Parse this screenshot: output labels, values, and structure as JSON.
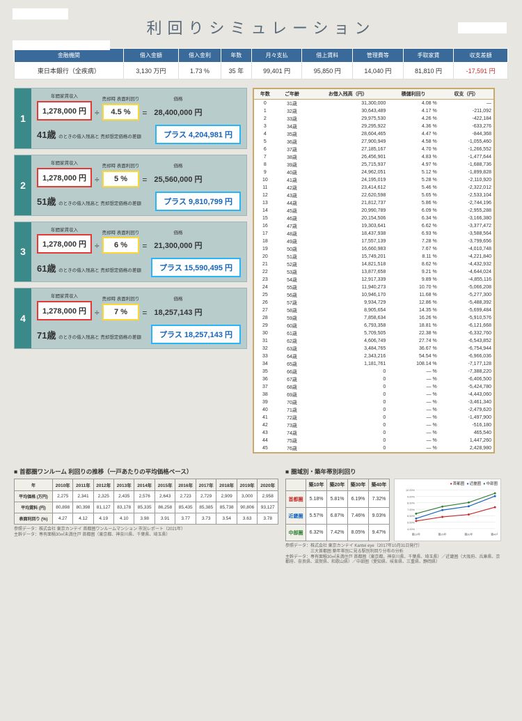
{
  "title": "利回りシミュレーション",
  "summary": {
    "headers": [
      "金融機関",
      "借入金額",
      "借入金利",
      "年数",
      "月々支払",
      "借上賃料",
      "管理費等",
      "手取家賃",
      "収支差額"
    ],
    "row": {
      "bank": "東日本銀行（全疾病）",
      "loan": "3,130 万円",
      "rate": "1.73 %",
      "years": "35 年",
      "monthly": "99,401 円",
      "rent": "95,850 円",
      "mgmt": "14,040 円",
      "net": "81,810 円",
      "diff": "-17,591 円"
    }
  },
  "scenarios": [
    {
      "num": "1",
      "income": "1,278,000 円",
      "income_label": "年間家賃収入",
      "yield": "4.5 %",
      "yield_label": "売却時\n表面利回り",
      "price": "28,400,000 円",
      "price_label": "価格",
      "age": "41歳",
      "age_note": "のときの借入残高と\n売却想定価格の差額",
      "plus": "プラス 4,204,981 円"
    },
    {
      "num": "2",
      "income": "1,278,000 円",
      "income_label": "年間家賃収入",
      "yield": "5 %",
      "yield_label": "売却時\n表面利回り",
      "price": "25,560,000 円",
      "price_label": "価格",
      "age": "51歳",
      "age_note": "のときの借入残高と\n売却想定価格の差額",
      "plus": "プラス 9,810,799 円"
    },
    {
      "num": "3",
      "income": "1,278,000 円",
      "income_label": "年間家賃収入",
      "yield": "6 %",
      "yield_label": "売却時\n表面利回り",
      "price": "21,300,000 円",
      "price_label": "価格",
      "age": "61歳",
      "age_note": "のときの借入残高と\n売却想定価格の差額",
      "plus": "プラス 15,590,495 円"
    },
    {
      "num": "4",
      "income": "1,278,000 円",
      "income_label": "年間家賃収入",
      "yield": "7 %",
      "yield_label": "売却時\n表面利回り",
      "price": "18,257,143 円",
      "price_label": "価格",
      "age": "71歳",
      "age_note": "のときの借入残高と\n売却想定価格の差額",
      "plus": "プラス 18,257,143 円"
    }
  ],
  "amort": {
    "headers": [
      "年数",
      "ご年齢",
      "お借入残高（円）",
      "積儲利回り",
      "収支（円）"
    ],
    "rows": [
      [
        0,
        "31歳",
        "31,300,000",
        "4.08 %",
        "—"
      ],
      [
        1,
        "32歳",
        "30,643,489",
        "4.17 %",
        "-211,092"
      ],
      [
        2,
        "33歳",
        "29,975,530",
        "4.26 %",
        "-422,184"
      ],
      [
        3,
        "34歳",
        "29,295,922",
        "4.36 %",
        "-633,276"
      ],
      [
        4,
        "35歳",
        "28,604,465",
        "4.47 %",
        "-844,368"
      ],
      [
        5,
        "36歳",
        "27,900,949",
        "4.58 %",
        "-1,055,460"
      ],
      [
        6,
        "37歳",
        "27,185,167",
        "4.70 %",
        "-1,266,552"
      ],
      [
        7,
        "38歳",
        "26,456,901",
        "4.83 %",
        "-1,477,644"
      ],
      [
        8,
        "39歳",
        "25,715,937",
        "4.97 %",
        "-1,688,736"
      ],
      [
        9,
        "40歳",
        "24,962,051",
        "5.12 %",
        "-1,899,828"
      ],
      [
        10,
        "41歳",
        "24,195,019",
        "5.28 %",
        "-2,110,920"
      ],
      [
        11,
        "42歳",
        "23,414,612",
        "5.46 %",
        "-2,322,012"
      ],
      [
        12,
        "43歳",
        "22,620,598",
        "5.65 %",
        "-2,533,104"
      ],
      [
        13,
        "44歳",
        "21,812,737",
        "5.86 %",
        "-2,744,196"
      ],
      [
        14,
        "45歳",
        "20,990,789",
        "6.09 %",
        "-2,955,288"
      ],
      [
        15,
        "46歳",
        "20,154,506",
        "6.34 %",
        "-3,166,380"
      ],
      [
        16,
        "47歳",
        "19,303,641",
        "6.62 %",
        "-3,377,472"
      ],
      [
        17,
        "48歳",
        "18,437,938",
        "6.93 %",
        "-3,588,564"
      ],
      [
        18,
        "49歳",
        "17,557,139",
        "7.28 %",
        "-3,799,656"
      ],
      [
        19,
        "50歳",
        "16,660,983",
        "7.67 %",
        "-4,010,748"
      ],
      [
        20,
        "51歳",
        "15,749,201",
        "8.11 %",
        "-4,221,840"
      ],
      [
        21,
        "52歳",
        "14,821,518",
        "8.62 %",
        "-4,432,932"
      ],
      [
        22,
        "53歳",
        "13,877,658",
        "9.21 %",
        "-4,644,024"
      ],
      [
        23,
        "54歳",
        "12,917,339",
        "9.89 %",
        "-4,855,116"
      ],
      [
        24,
        "55歳",
        "11,940,273",
        "10.70 %",
        "-5,066,208"
      ],
      [
        25,
        "56歳",
        "10,946,170",
        "11.68 %",
        "-5,277,300"
      ],
      [
        26,
        "57歳",
        "9,934,729",
        "12.86 %",
        "-5,488,392"
      ],
      [
        27,
        "58歳",
        "8,905,654",
        "14.35 %",
        "-5,699,484"
      ],
      [
        28,
        "59歳",
        "7,858,634",
        "16.26 %",
        "-5,910,576"
      ],
      [
        29,
        "60歳",
        "6,793,358",
        "18.81 %",
        "-6,121,668"
      ],
      [
        30,
        "61歳",
        "5,709,505",
        "22.38 %",
        "-6,332,760"
      ],
      [
        31,
        "62歳",
        "4,606,749",
        "27.74 %",
        "-6,543,852"
      ],
      [
        32,
        "63歳",
        "3,484,765",
        "36.67 %",
        "-6,754,944"
      ],
      [
        33,
        "64歳",
        "2,343,216",
        "54.54 %",
        "-6,966,036"
      ],
      [
        34,
        "65歳",
        "1,181,761",
        "108.14 %",
        "-7,177,128"
      ],
      [
        35,
        "66歳",
        "0",
        "— %",
        "-7,388,220"
      ],
      [
        36,
        "67歳",
        "0",
        "— %",
        "-6,406,500"
      ],
      [
        37,
        "68歳",
        "0",
        "— %",
        "-5,424,780"
      ],
      [
        38,
        "69歳",
        "0",
        "— %",
        "-4,443,060"
      ],
      [
        39,
        "70歳",
        "0",
        "— %",
        "-3,461,340"
      ],
      [
        40,
        "71歳",
        "0",
        "— %",
        "-2,479,620"
      ],
      [
        41,
        "72歳",
        "0",
        "— %",
        "-1,497,900"
      ],
      [
        42,
        "73歳",
        "0",
        "— %",
        "-516,180"
      ],
      [
        43,
        "74歳",
        "0",
        "— %",
        "465,540"
      ],
      [
        44,
        "75歳",
        "0",
        "— %",
        "1,447,260"
      ],
      [
        45,
        "76歳",
        "0",
        "— %",
        "2,428,980"
      ]
    ]
  },
  "trend": {
    "title": "首都圏ワンルーム 利回りの推移（一戸あたりの平均価格ベース）",
    "years": [
      "2010年",
      "2011年",
      "2012年",
      "2013年",
      "2014年",
      "2015年",
      "2016年",
      "2017年",
      "2018年",
      "2019年",
      "2020年"
    ],
    "rows": [
      {
        "label": "平均価格\n(万円)",
        "vals": [
          "2,275",
          "2,341",
          "2,325",
          "2,435",
          "2,576",
          "2,643",
          "2,723",
          "2,729",
          "2,909",
          "3,000",
          "2,958"
        ]
      },
      {
        "label": "平均賃料\n(円)",
        "vals": [
          "80,898",
          "80,398",
          "81,127",
          "83,178",
          "85,335",
          "86,258",
          "85,435",
          "85,385",
          "85,738",
          "90,806",
          "93,127"
        ]
      },
      {
        "label": "表面利回り\n(%)",
        "vals": [
          "4.27",
          "4.12",
          "4.19",
          "4.10",
          "3.98",
          "3.91",
          "3.77",
          "3.73",
          "3.54",
          "3.63",
          "3.78"
        ]
      }
    ],
    "foot1": "参照データ：株式会社 東京カンテイ 首都圏ワンルームマンション 市況レポート（2021年）",
    "foot2": "主幹データ：専有面積30㎡未満住戸 首都圏（東京都、神奈川県、千葉県、埼玉県）"
  },
  "region": {
    "title": "圏域別・築年帯別利回り",
    "cols": [
      "",
      "築10年",
      "築20年",
      "築30年",
      "築40年"
    ],
    "rows": [
      {
        "label": "首都圏",
        "cls": "rh-red",
        "vals": [
          "5.18%",
          "5.81%",
          "6.19%",
          "7.32%"
        ]
      },
      {
        "label": "近畿圏",
        "cls": "rh-blue",
        "vals": [
          "5.57%",
          "6.87%",
          "7.46%",
          "9.03%"
        ]
      },
      {
        "label": "中部圏",
        "cls": "rh-green",
        "vals": [
          "6.32%",
          "7.42%",
          "8.05%",
          "9.47%"
        ]
      }
    ],
    "legend": [
      "首都圏",
      "近畿圏",
      "中部圏"
    ],
    "foot1": "参照データ：株式会社 東京カンテイ Kantei eye（2017年10月31日発行）",
    "foot2": "　　　　　　三大首都圏 築年帯別に見る駅別利回り分布の分析",
    "foot3": "主幹データ：専有面積30㎡未満住戸 首都圏（東京都、神奈川県、千葉県、埼玉県）／近畿圏（大阪府、兵庫県、京都府、奈良県、滋賀県、和歌山県）／中部圏（愛知県、岐阜県、三重県、静岡県）",
    "chart": {
      "ylabels": [
        "10.00%",
        "9.00%",
        "8.00%",
        "7.00%",
        "6.00%",
        "5.00%",
        "4.00%"
      ],
      "xlabels": [
        "築10年",
        "築20年",
        "築30年",
        "築40年"
      ],
      "series": [
        {
          "color": "#c62828",
          "pts": [
            5.18,
            5.81,
            6.19,
            7.32
          ]
        },
        {
          "color": "#1565c0",
          "pts": [
            5.57,
            6.87,
            7.46,
            9.03
          ]
        },
        {
          "color": "#2e7d32",
          "pts": [
            6.32,
            7.42,
            8.05,
            9.47
          ]
        }
      ],
      "ymin": 4.0,
      "ymax": 10.0
    }
  }
}
